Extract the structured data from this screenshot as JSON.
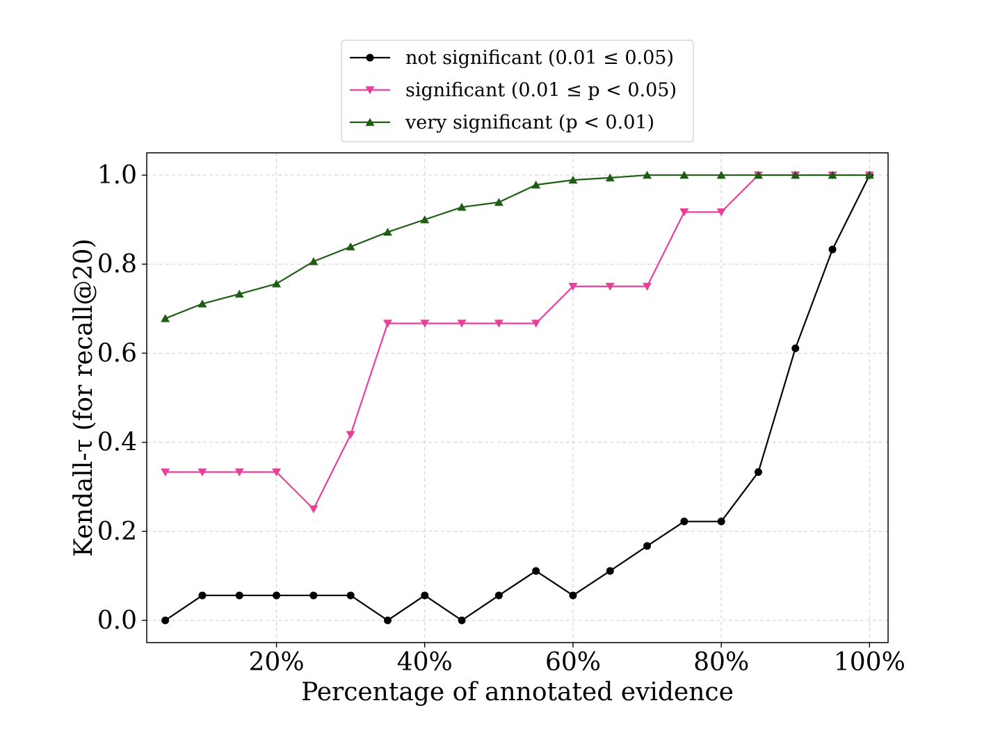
{
  "chart_data": {
    "type": "line",
    "title": "",
    "xlabel": "Percentage of annotated evidence",
    "ylabel": "Kendall-τ (for recall@20)",
    "xlim": [
      0.025,
      1.025
    ],
    "ylim": [
      -0.05,
      1.05
    ],
    "grid": true,
    "legend_position": "top-center",
    "x_ticks": [
      {
        "value": 0.2,
        "label": "20%"
      },
      {
        "value": 0.4,
        "label": "40%"
      },
      {
        "value": 0.6,
        "label": "60%"
      },
      {
        "value": 0.8,
        "label": "80%"
      },
      {
        "value": 1.0,
        "label": "100%"
      }
    ],
    "y_ticks": [
      {
        "value": 0.0,
        "label": "0.0"
      },
      {
        "value": 0.2,
        "label": "0.2"
      },
      {
        "value": 0.4,
        "label": "0.4"
      },
      {
        "value": 0.6,
        "label": "0.6"
      },
      {
        "value": 0.8,
        "label": "0.8"
      },
      {
        "value": 1.0,
        "label": "1.0"
      }
    ],
    "x": [
      0.05,
      0.1,
      0.15,
      0.2,
      0.25,
      0.3,
      0.35,
      0.4,
      0.45,
      0.5,
      0.55,
      0.6,
      0.65,
      0.7,
      0.75,
      0.8,
      0.85,
      0.9,
      0.95,
      1.0
    ],
    "series": [
      {
        "name": "not significant (0.01 ≤ 0.05)",
        "color": "#000000",
        "marker": "circle",
        "values": [
          0.0,
          0.056,
          0.056,
          0.056,
          0.056,
          0.056,
          0.0,
          0.056,
          0.0,
          0.056,
          0.111,
          0.056,
          0.111,
          0.167,
          0.222,
          0.222,
          0.333,
          0.611,
          0.833,
          1.0
        ]
      },
      {
        "name": "significant (0.01 ≤ p < 0.05)",
        "color": "#e8409a",
        "marker": "triangle-down",
        "values": [
          0.333,
          0.333,
          0.333,
          0.333,
          0.25,
          0.417,
          0.667,
          0.667,
          0.667,
          0.667,
          0.667,
          0.75,
          0.75,
          0.75,
          0.917,
          0.917,
          1.0,
          1.0,
          1.0,
          1.0
        ]
      },
      {
        "name": "very significant (p < 0.01)",
        "color": "#1f5c14",
        "marker": "triangle-up",
        "values": [
          0.678,
          0.711,
          0.733,
          0.756,
          0.806,
          0.839,
          0.872,
          0.9,
          0.928,
          0.939,
          0.978,
          0.989,
          0.994,
          1.0,
          1.0,
          1.0,
          1.0,
          1.0,
          1.0,
          1.0
        ]
      }
    ]
  }
}
